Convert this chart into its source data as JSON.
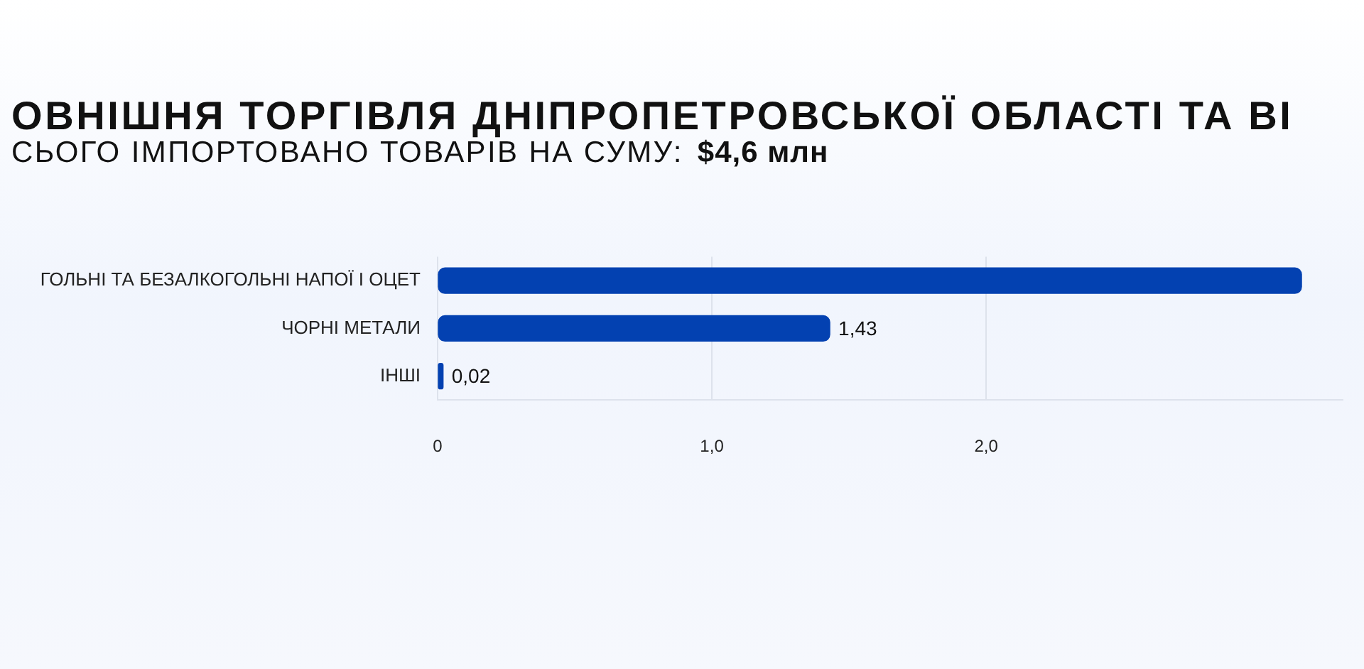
{
  "chart_data": {
    "type": "bar",
    "orientation": "horizontal",
    "title": "ОВНІШНЯ ТОРГІВЛЯ ДНІПРОПЕТРОВСЬКОЇ ОБЛАСТІ ТА ВІ",
    "subtitle": "СЬОГО ІМПОРТОВАНО ТОВАРІВ НА СУМУ:  $4,6 млн",
    "categories": [
      "ГОЛЬНІ ТА БЕЗАЛКОГОЛЬНІ НАПОЇ І ОЦЕТ",
      "ЧОРНІ МЕТАЛИ",
      "ІНШІ"
    ],
    "values": [
      3.15,
      1.43,
      0.02
    ],
    "value_labels": [
      null,
      "1,43",
      "0,02"
    ],
    "color": "#0341b1",
    "xlim": [
      0,
      3.3
    ],
    "xticks": [
      0,
      {
        "value": 1,
        "label": "1,0"
      },
      {
        "value": 2,
        "label": "2,0"
      }
    ],
    "grid": "x"
  }
}
